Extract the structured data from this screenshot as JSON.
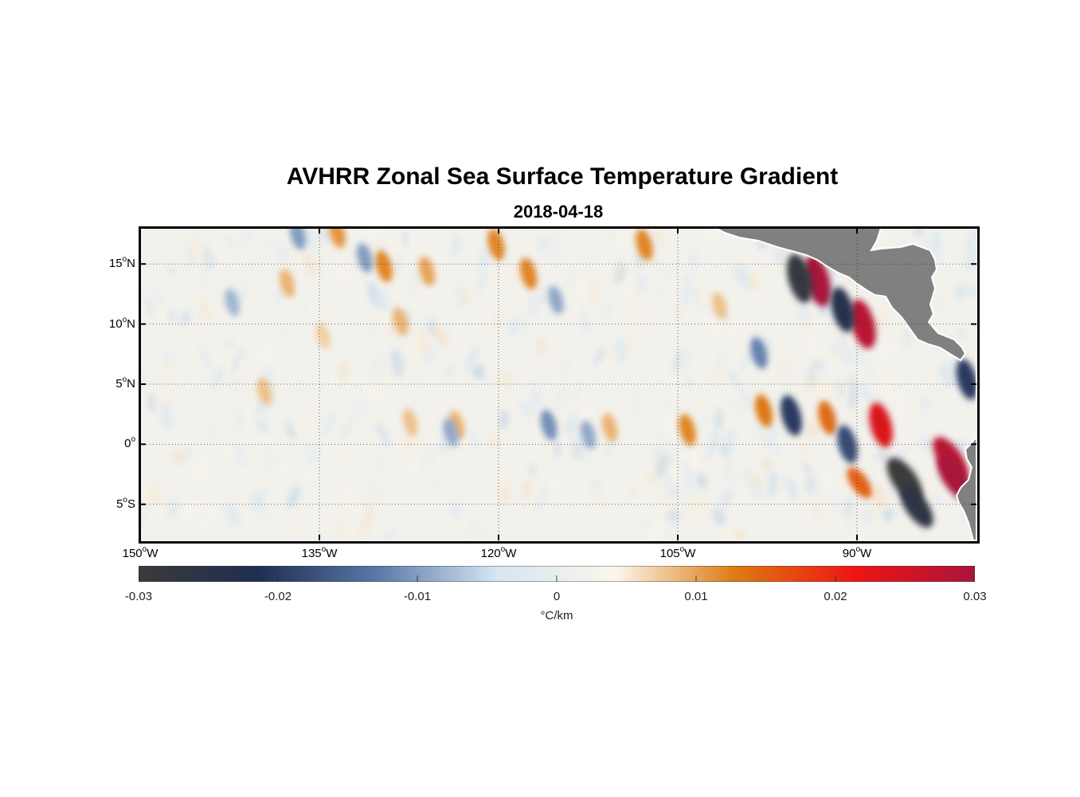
{
  "title": "AVHRR Zonal Sea Surface Temperature Gradient",
  "subtitle": "2018-04-18",
  "map": {
    "lon_range": [
      -150,
      -80
    ],
    "lat_range": [
      -8,
      18
    ],
    "y_ticks": [
      {
        "deg": "15",
        "hemi": "N",
        "lat": 15
      },
      {
        "deg": "10",
        "hemi": "N",
        "lat": 10
      },
      {
        "deg": "5",
        "hemi": "N",
        "lat": 5
      },
      {
        "deg": "0",
        "hemi": "",
        "lat": 0
      },
      {
        "deg": "5",
        "hemi": "S",
        "lat": -5
      }
    ],
    "x_ticks": [
      {
        "deg": "150",
        "hemi": "W",
        "lon": -150
      },
      {
        "deg": "135",
        "hemi": "W",
        "lon": -135
      },
      {
        "deg": "120",
        "hemi": "W",
        "lon": -120
      },
      {
        "deg": "105",
        "hemi": "W",
        "lon": -105
      },
      {
        "deg": "90",
        "hemi": "W",
        "lon": -90
      }
    ],
    "land_color": "#808080",
    "gradient_features": [
      {
        "lon": -93.3,
        "lat": 13.6,
        "value": 0.03
      },
      {
        "lon": -94.8,
        "lat": 13.8,
        "value": -0.028
      },
      {
        "lon": -89.5,
        "lat": 10.0,
        "value": 0.028
      },
      {
        "lon": -91.2,
        "lat": 11.2,
        "value": -0.024
      },
      {
        "lon": -82.2,
        "lat": -1.2,
        "value": 0.028
      },
      {
        "lon": -81.8,
        "lat": -2.8,
        "value": 0.03
      },
      {
        "lon": -86.0,
        "lat": -3.0,
        "value": -0.03
      },
      {
        "lon": -85.0,
        "lat": -5.2,
        "value": -0.026
      },
      {
        "lon": -88.0,
        "lat": 1.6,
        "value": 0.024
      },
      {
        "lon": -89.8,
        "lat": -3.2,
        "value": 0.015
      },
      {
        "lon": -95.5,
        "lat": 2.4,
        "value": -0.02
      },
      {
        "lon": -97.8,
        "lat": 2.8,
        "value": 0.013
      },
      {
        "lon": -92.5,
        "lat": 2.2,
        "value": 0.014
      },
      {
        "lon": -104.2,
        "lat": 1.2,
        "value": 0.012
      },
      {
        "lon": -80.8,
        "lat": 5.4,
        "value": -0.02
      },
      {
        "lon": -90.8,
        "lat": 0.0,
        "value": -0.018
      },
      {
        "lon": -107.8,
        "lat": 16.6,
        "value": 0.012
      },
      {
        "lon": -117.5,
        "lat": 14.2,
        "value": 0.012
      },
      {
        "lon": -120.2,
        "lat": 16.6,
        "value": 0.012
      },
      {
        "lon": -129.6,
        "lat": 14.8,
        "value": 0.012
      },
      {
        "lon": -131.2,
        "lat": 15.5,
        "value": -0.01
      },
      {
        "lon": -137.7,
        "lat": 13.4,
        "value": 0.009
      },
      {
        "lon": -128.2,
        "lat": 10.2,
        "value": 0.009
      },
      {
        "lon": -134.7,
        "lat": 9.0,
        "value": 0.007
      },
      {
        "lon": -139.6,
        "lat": 4.4,
        "value": 0.008
      },
      {
        "lon": -123.5,
        "lat": 1.6,
        "value": 0.009
      },
      {
        "lon": -127.4,
        "lat": 1.8,
        "value": 0.008
      },
      {
        "lon": -115.8,
        "lat": 1.6,
        "value": -0.011
      },
      {
        "lon": -110.7,
        "lat": 1.4,
        "value": 0.009
      },
      {
        "lon": -112.5,
        "lat": 0.8,
        "value": -0.009
      },
      {
        "lon": -124.0,
        "lat": 1.0,
        "value": -0.009
      },
      {
        "lon": -133.5,
        "lat": 17.6,
        "value": 0.011
      },
      {
        "lon": -136.8,
        "lat": 17.4,
        "value": -0.01
      },
      {
        "lon": -126.0,
        "lat": 14.4,
        "value": 0.01
      },
      {
        "lon": -101.5,
        "lat": 11.5,
        "value": 0.008
      },
      {
        "lon": -98.2,
        "lat": 7.6,
        "value": -0.012
      },
      {
        "lon": -115.2,
        "lat": 12.0,
        "value": -0.009
      },
      {
        "lon": -142.3,
        "lat": 11.8,
        "value": -0.008
      }
    ]
  },
  "colorbar": {
    "min": -0.03,
    "max": 0.03,
    "tick_values": [
      -0.03,
      -0.02,
      -0.01,
      0,
      0.01,
      0.02,
      0.03
    ],
    "tick_labels": [
      "-0.03",
      "-0.02",
      "-0.01",
      "0",
      "0.01",
      "0.02",
      "0.03"
    ],
    "unit_label": "°C/km",
    "colors": [
      "#3a3a3a",
      "#1f2e52",
      "#5a78a8",
      "#d6e6f2",
      "#fbf6ea",
      "#dd7a12",
      "#ef1414",
      "#a8153a"
    ]
  }
}
